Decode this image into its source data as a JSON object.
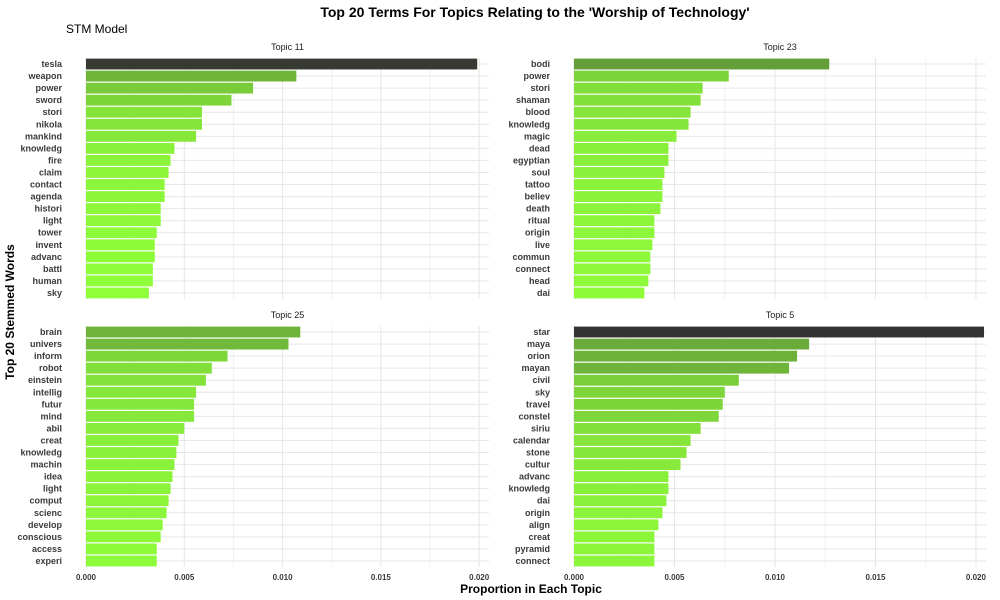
{
  "chart_data": {
    "type": "bar",
    "title": "Top 20 Terms For Topics Relating to the 'Worship of Technology'",
    "subtitle": "STM Model",
    "xlabel": "Proportion in Each Topic",
    "ylabel": "Top 20 Stemmed Words",
    "xlim": [
      0,
      0.0205
    ],
    "x_ticks": [
      "0.000",
      "0.005",
      "0.010",
      "0.015",
      "0.020"
    ],
    "grid": true,
    "color_scale": {
      "low": "#90ff3a",
      "mid": "#6aaa3a",
      "high": "#333333"
    },
    "panels": [
      {
        "name": "Topic 11",
        "categories": [
          "tesla",
          "weapon",
          "power",
          "sword",
          "stori",
          "nikola",
          "mankind",
          "knowledg",
          "fire",
          "claim",
          "contact",
          "agenda",
          "histori",
          "light",
          "tower",
          "invent",
          "advanc",
          "battl",
          "human",
          "sky"
        ],
        "values": [
          0.0199,
          0.0107,
          0.0085,
          0.0074,
          0.0059,
          0.0059,
          0.0056,
          0.0045,
          0.0043,
          0.0042,
          0.004,
          0.004,
          0.0038,
          0.0038,
          0.0036,
          0.0035,
          0.0035,
          0.0034,
          0.0034,
          0.0032
        ]
      },
      {
        "name": "Topic 23",
        "categories": [
          "bodi",
          "power",
          "stori",
          "shaman",
          "blood",
          "knowledg",
          "magic",
          "dead",
          "egyptian",
          "soul",
          "tattoo",
          "believ",
          "death",
          "ritual",
          "origin",
          "live",
          "commun",
          "connect",
          "head",
          "dai"
        ],
        "values": [
          0.0127,
          0.0077,
          0.0064,
          0.0063,
          0.0058,
          0.0057,
          0.0051,
          0.0047,
          0.0047,
          0.0045,
          0.0044,
          0.0044,
          0.0043,
          0.004,
          0.004,
          0.0039,
          0.0038,
          0.0038,
          0.0037,
          0.0035
        ]
      },
      {
        "name": "Topic 25",
        "categories": [
          "brain",
          "univers",
          "inform",
          "robot",
          "einstein",
          "intellig",
          "futur",
          "mind",
          "abil",
          "creat",
          "knowledg",
          "machin",
          "idea",
          "light",
          "comput",
          "scienc",
          "develop",
          "conscious",
          "access",
          "experi"
        ],
        "values": [
          0.0109,
          0.0103,
          0.0072,
          0.0064,
          0.0061,
          0.0056,
          0.0055,
          0.0055,
          0.005,
          0.0047,
          0.0046,
          0.0045,
          0.0044,
          0.0043,
          0.0042,
          0.0041,
          0.0039,
          0.0038,
          0.0036,
          0.0036
        ]
      },
      {
        "name": "Topic 5",
        "categories": [
          "star",
          "maya",
          "orion",
          "mayan",
          "civil",
          "sky",
          "travel",
          "constel",
          "siriu",
          "calendar",
          "stone",
          "cultur",
          "advanc",
          "knowledg",
          "dai",
          "origin",
          "align",
          "creat",
          "pyramid",
          "connect"
        ],
        "values": [
          0.0204,
          0.0117,
          0.0111,
          0.0107,
          0.0082,
          0.0075,
          0.0074,
          0.0072,
          0.0063,
          0.0058,
          0.0056,
          0.0053,
          0.0047,
          0.0047,
          0.0046,
          0.0044,
          0.0042,
          0.004,
          0.004,
          0.004
        ]
      }
    ]
  }
}
